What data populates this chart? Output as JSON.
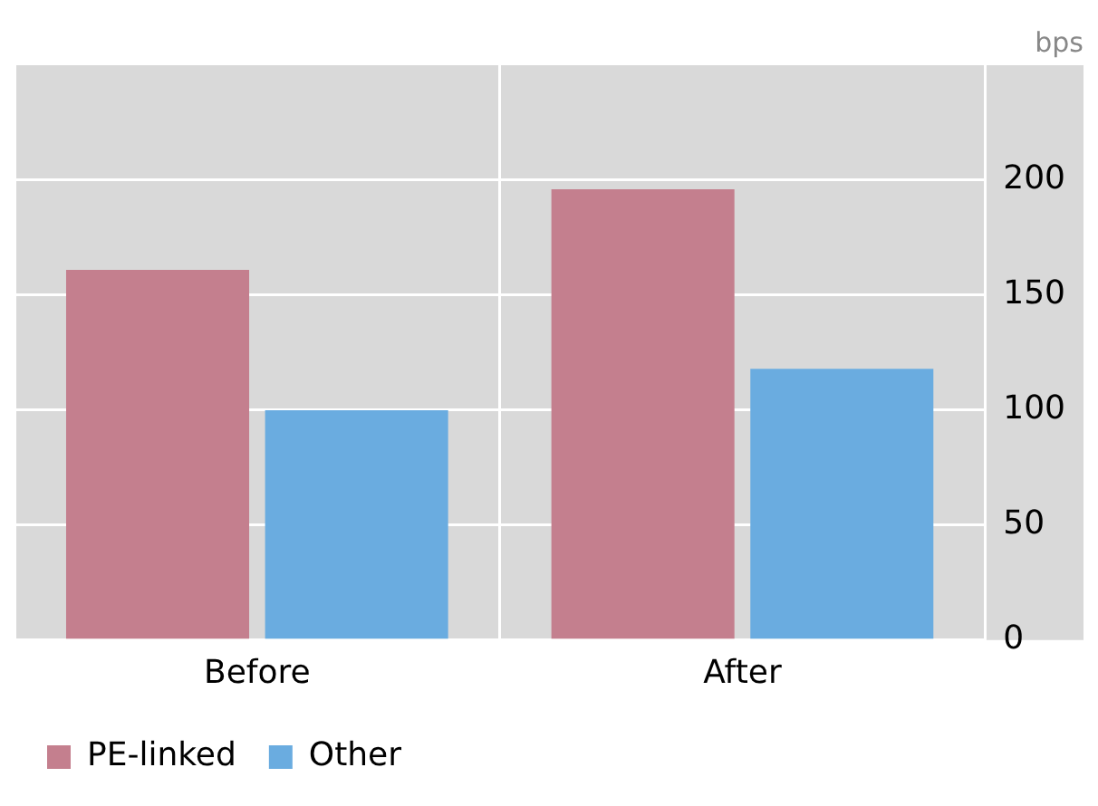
{
  "chart_data": {
    "type": "bar",
    "ylabel": "bps",
    "categories": [
      "Before",
      "After"
    ],
    "series": [
      {
        "name": "PE-linked",
        "color": "#c47f8e",
        "values": [
          161,
          196
        ]
      },
      {
        "name": "Other",
        "color": "#6aace0",
        "values": [
          100,
          118
        ]
      }
    ],
    "ylim": [
      0,
      250
    ],
    "yticks": [
      0,
      50,
      100,
      150,
      200
    ],
    "grid": true,
    "legend": "bottom left"
  }
}
